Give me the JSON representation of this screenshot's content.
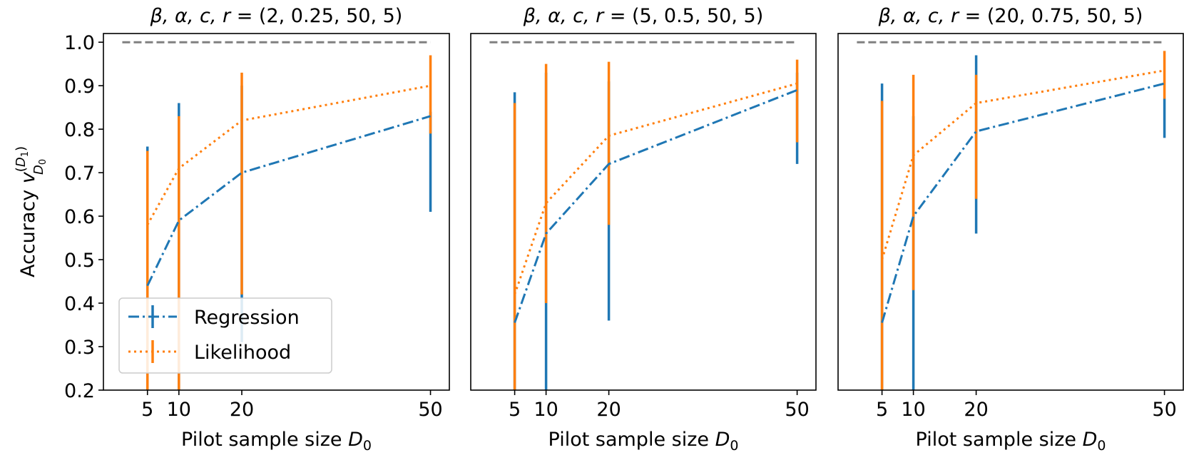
{
  "chart_data": [
    {
      "type": "line",
      "title": "β, α, c, r = (2, 0.25, 50, 5)",
      "title_math": {
        "prefix": "β, α, c, r",
        "suffix": " = (2, 0.25, 50, 5)"
      },
      "xlabel": "Pilot sample size D₀",
      "ylabel": "Accuracy v_{D₀}^{(D₁)}",
      "x": [
        5,
        10,
        20,
        50
      ],
      "x_ticks": [
        "5",
        "10",
        "20",
        "50"
      ],
      "xlim": [
        -2,
        53
      ],
      "ylim": [
        0.2,
        1.02
      ],
      "y_ticks": [
        "0.2",
        "0.3",
        "0.4",
        "0.5",
        "0.6",
        "0.7",
        "0.8",
        "0.9",
        "1.0"
      ],
      "reference_line": 1.0,
      "legend": "lower-left",
      "series": [
        {
          "name": "Regression",
          "color": "#1f77b4",
          "style": "dashdot",
          "values": [
            0.44,
            0.59,
            0.7,
            0.83
          ],
          "err_low": [
            0.18,
            0.2,
            0.31,
            0.61
          ],
          "err_high": [
            0.76,
            0.86,
            0.9,
            0.84
          ]
        },
        {
          "name": "Likelihood",
          "color": "#ff7f0e",
          "style": "dotted",
          "values": [
            0.58,
            0.71,
            0.82,
            0.9
          ],
          "err_low": [
            0.19,
            0.2,
            0.42,
            0.79
          ],
          "err_high": [
            0.75,
            0.83,
            0.93,
            0.97
          ]
        }
      ]
    },
    {
      "type": "line",
      "title": "β, α, c, r = (5, 0.5, 50, 5)",
      "title_math": {
        "prefix": "β, α, c, r",
        "suffix": " = (5, 0.5, 50, 5)"
      },
      "xlabel": "Pilot sample size D₀",
      "x": [
        5,
        10,
        20,
        50
      ],
      "x_ticks": [
        "5",
        "10",
        "20",
        "50"
      ],
      "xlim": [
        -2,
        53
      ],
      "ylim": [
        0.2,
        1.02
      ],
      "reference_line": 1.0,
      "series": [
        {
          "name": "Regression",
          "color": "#1f77b4",
          "style": "dashdot",
          "values": [
            0.355,
            0.56,
            0.72,
            0.89
          ],
          "err_low": [
            0.2,
            0.2,
            0.36,
            0.72
          ],
          "err_high": [
            0.885,
            0.93,
            0.91,
            0.93
          ]
        },
        {
          "name": "Likelihood",
          "color": "#ff7f0e",
          "style": "dotted",
          "values": [
            0.42,
            0.63,
            0.785,
            0.905
          ],
          "err_low": [
            0.2,
            0.4,
            0.58,
            0.77
          ],
          "err_high": [
            0.86,
            0.95,
            0.955,
            0.96
          ]
        }
      ]
    },
    {
      "type": "line",
      "title": "β, α, c, r = (20, 0.75, 50, 5)",
      "title_math": {
        "prefix": "β, α, c, r",
        "suffix": " = (20, 0.75, 50, 5)"
      },
      "xlabel": "Pilot sample size D₀",
      "x": [
        5,
        10,
        20,
        50
      ],
      "x_ticks": [
        "5",
        "10",
        "20",
        "50"
      ],
      "xlim": [
        -2,
        53
      ],
      "ylim": [
        0.2,
        1.02
      ],
      "reference_line": 1.0,
      "series": [
        {
          "name": "Regression",
          "color": "#1f77b4",
          "style": "dashdot",
          "values": [
            0.355,
            0.6,
            0.795,
            0.905
          ],
          "err_low": [
            0.2,
            0.2,
            0.56,
            0.78
          ],
          "err_high": [
            0.905,
            0.83,
            0.97,
            0.87
          ]
        },
        {
          "name": "Likelihood",
          "color": "#ff7f0e",
          "style": "dotted",
          "values": [
            0.5,
            0.74,
            0.86,
            0.935
          ],
          "err_low": [
            0.2,
            0.43,
            0.64,
            0.87
          ],
          "err_high": [
            0.865,
            0.925,
            0.925,
            0.98
          ]
        }
      ]
    }
  ]
}
